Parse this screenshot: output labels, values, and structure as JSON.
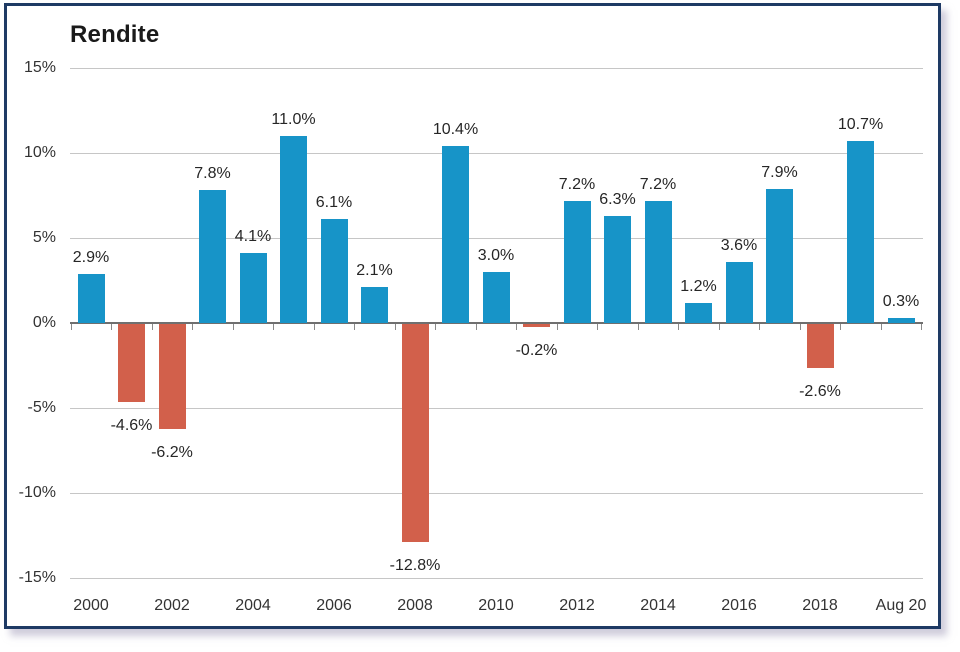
{
  "chart_data": {
    "type": "bar",
    "title": "Rendite",
    "categories": [
      "2000",
      "2001",
      "2002",
      "2003",
      "2004",
      "2005",
      "2006",
      "2007",
      "2008",
      "2009",
      "2010",
      "2011",
      "2012",
      "2013",
      "2014",
      "2015",
      "2016",
      "2017",
      "2018",
      "2019",
      "Aug 20"
    ],
    "values": [
      2.9,
      -4.6,
      -6.2,
      7.8,
      4.1,
      11.0,
      6.1,
      2.1,
      -12.8,
      10.4,
      3.0,
      -0.2,
      7.2,
      6.3,
      7.2,
      1.2,
      3.6,
      7.9,
      -2.6,
      10.7,
      0.3
    ],
    "bar_labels": [
      "2.9%",
      "-4.6%",
      "-6.2%",
      "7.8%",
      "4.1%",
      "11.0%",
      "6.1%",
      "2.1%",
      "-12.8%",
      "10.4%",
      "3.0%",
      "-0.2%",
      "7.2%",
      "6.3%",
      "7.2%",
      "1.2%",
      "3.6%",
      "7.9%",
      "-2.6%",
      "10.7%",
      "0.3%"
    ],
    "x_tick_labels": [
      "2000",
      "2002",
      "2004",
      "2006",
      "2008",
      "2010",
      "2012",
      "2014",
      "2016",
      "2018",
      "Aug 20"
    ],
    "x_label_every": 2,
    "y_ticks": [
      15,
      10,
      5,
      0,
      -5,
      -10,
      -15
    ],
    "y_tick_labels": [
      "15%",
      "10%",
      "5%",
      "0%",
      "-5%",
      "-10%",
      "-15%"
    ],
    "ylim": [
      -15,
      15
    ],
    "grid": "horizontal",
    "legend": "none",
    "colors": {
      "positive_bar": "#1794c8",
      "negative_bar": "#d2604b",
      "gridline": "#c6c6c6",
      "zero_line": "#6f6f6f",
      "axis_tick": "#8a8a8a",
      "title_text": "#1a1a1a",
      "value_label_text": "#262626",
      "axis_label_text": "#333333",
      "frame_border": "#1e3a64",
      "background": "#ffffff"
    }
  }
}
